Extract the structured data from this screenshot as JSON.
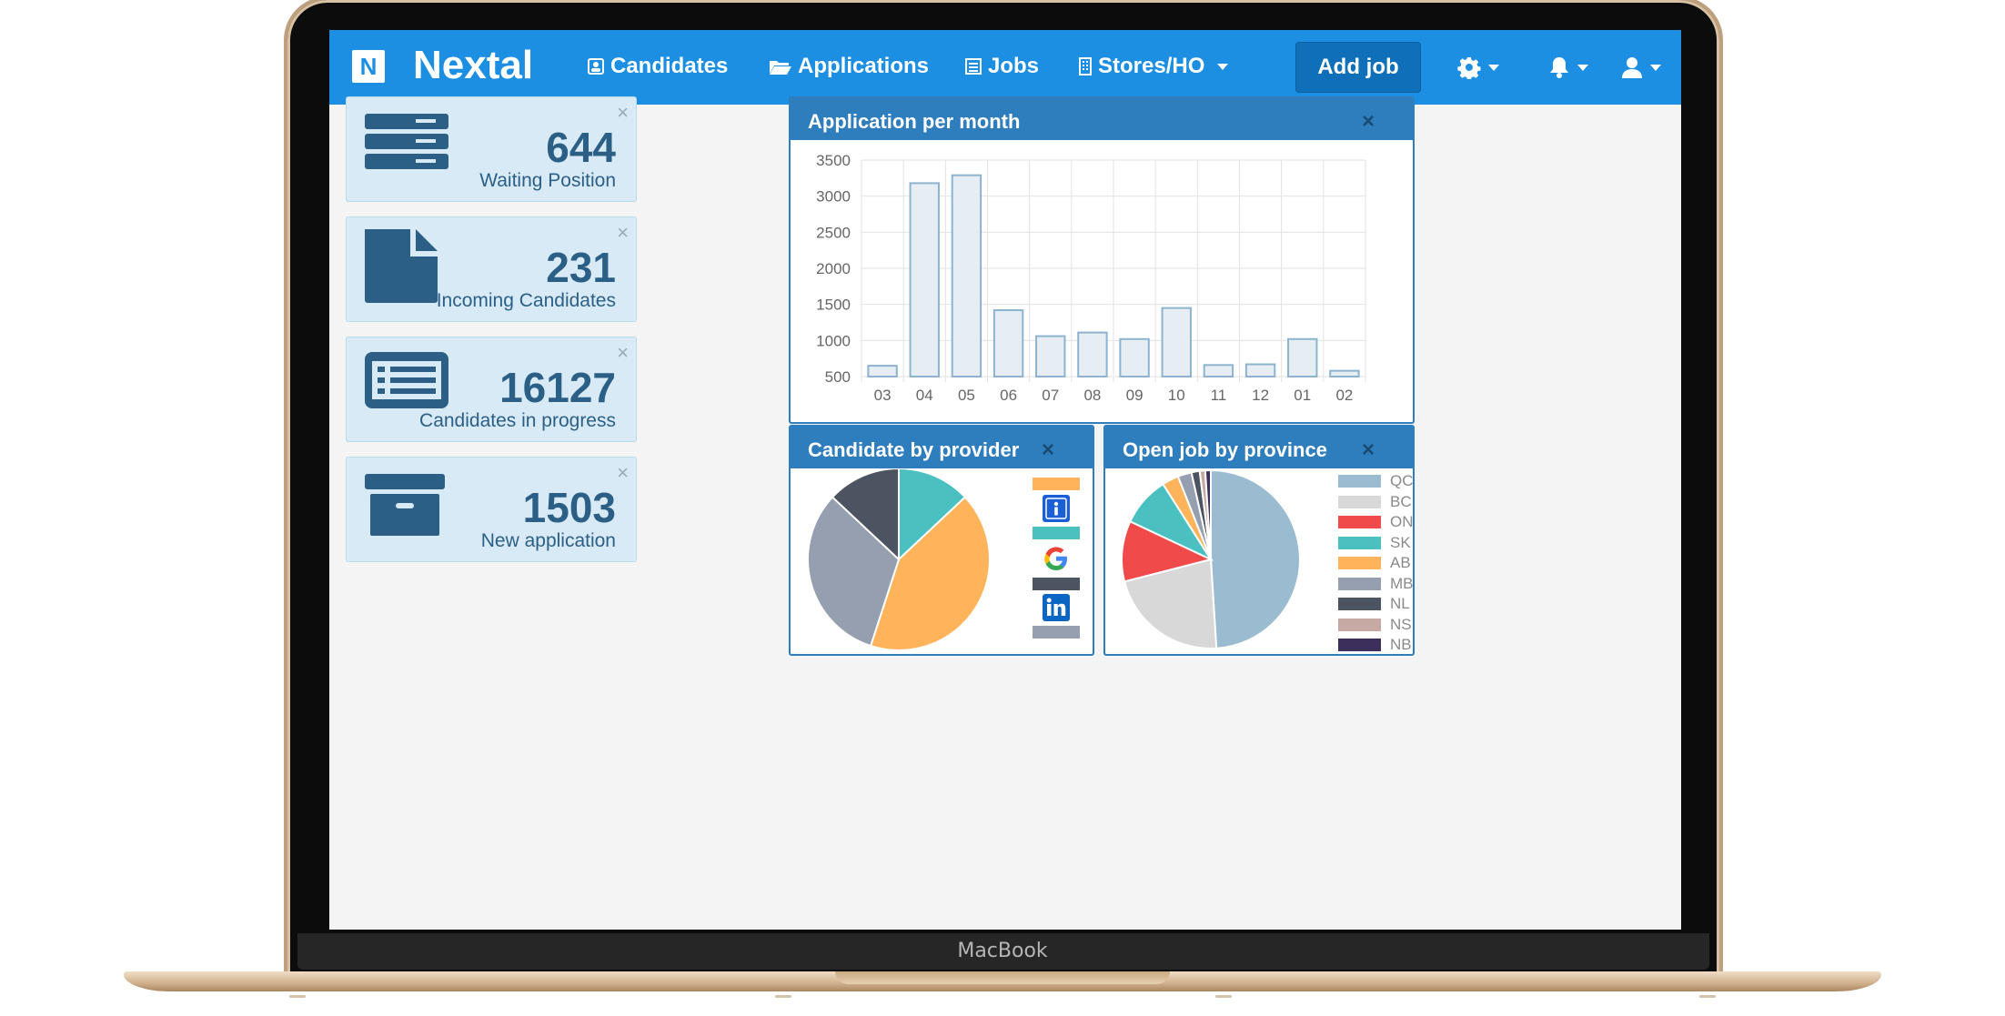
{
  "device": {
    "label": "MacBook"
  },
  "navbar": {
    "brand_letter": "N",
    "brand": "Nextal",
    "items": [
      {
        "label": "Candidates",
        "icon": "contact-card-icon"
      },
      {
        "label": "Applications",
        "icon": "folder-open-icon"
      },
      {
        "label": "Jobs",
        "icon": "list-icon"
      },
      {
        "label": "Stores/HO",
        "icon": "building-icon",
        "dropdown": true
      }
    ],
    "add_job": "Add job",
    "icons": [
      "gear-icon",
      "bell-icon",
      "user-icon"
    ]
  },
  "stats": [
    {
      "value": "644",
      "label": "Waiting Position",
      "icon": "server-icon"
    },
    {
      "value": "231",
      "label": "Incoming Candidates",
      "icon": "file-icon"
    },
    {
      "value": "16127",
      "label": "Candidates in progress",
      "icon": "list-card-icon"
    },
    {
      "value": "1503",
      "label": "New application",
      "icon": "archive-icon"
    }
  ],
  "close_glyph": "×",
  "panels": {
    "applications": {
      "title": "Application per month"
    },
    "provider": {
      "title": "Candidate by provider"
    },
    "province": {
      "title": "Open job by province"
    }
  },
  "chart_data": [
    {
      "type": "bar",
      "categories": [
        "03",
        "04",
        "05",
        "06",
        "07",
        "08",
        "09",
        "10",
        "11",
        "12",
        "01",
        "02"
      ],
      "values": [
        650,
        3180,
        3290,
        1420,
        1060,
        1110,
        1020,
        1450,
        660,
        670,
        1020,
        580
      ],
      "ylim": [
        500,
        3500
      ],
      "yticks": [
        500,
        1000,
        1500,
        2000,
        2500,
        3000,
        3500
      ],
      "grid": true,
      "colors": {
        "fill": "#e6eef4",
        "stroke": "#8db3cf",
        "grid": "#e2e2e2"
      }
    },
    {
      "type": "pie",
      "legend": "right",
      "slices": [
        {
          "value": 13,
          "color": "#4bc0c0",
          "legend_icon": "indeed-icon"
        },
        {
          "value": 42,
          "color": "#ffb45c",
          "legend_icon": "google-icon"
        },
        {
          "value": 32,
          "color": "#959faf",
          "legend_icon": "linkedin-icon"
        },
        {
          "value": 13,
          "color": "#4d5461",
          "legend_icon": "globe-icon"
        }
      ]
    },
    {
      "type": "pie",
      "legend": "right",
      "labels": [
        "QC",
        "BC",
        "ON",
        "SK",
        "AB",
        "MB",
        "NL",
        "NS",
        "NB"
      ],
      "values": [
        49,
        22,
        11,
        9,
        3,
        2.5,
        1.5,
        1,
        1
      ],
      "colors": [
        "#9bbcd0",
        "#d8d8d8",
        "#f04a4a",
        "#4bc0c0",
        "#ffb45c",
        "#959faf",
        "#4d5461",
        "#c6a9a2",
        "#3c2f5c"
      ]
    }
  ]
}
